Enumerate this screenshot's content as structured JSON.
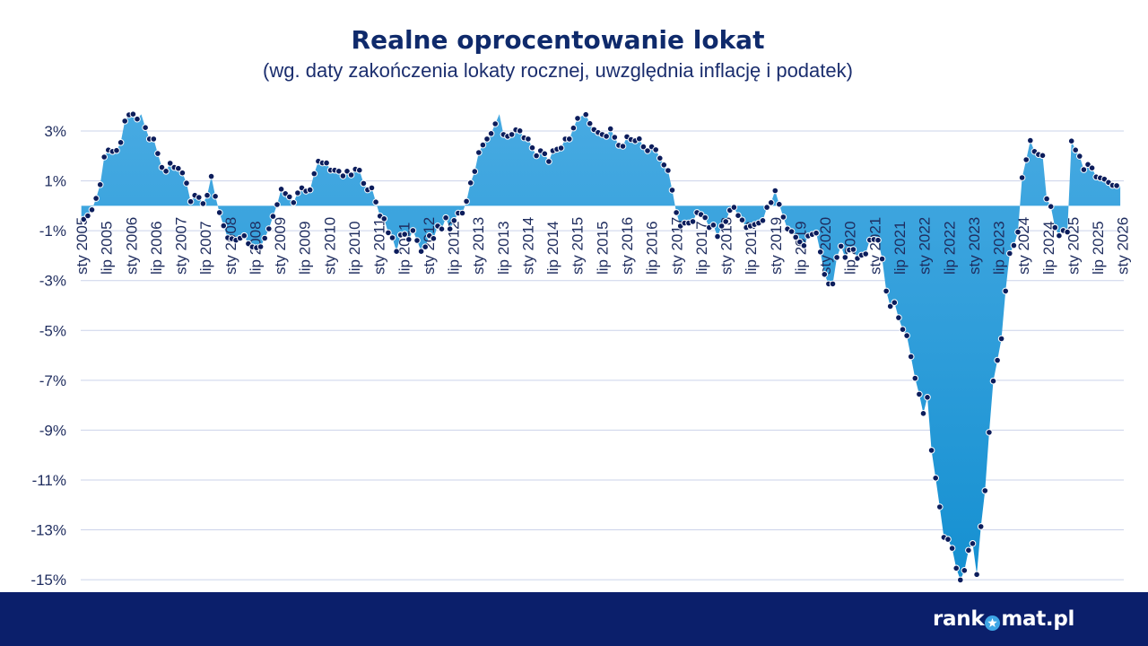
{
  "header": {
    "title": "Realne oprocentowanie lokat",
    "subtitle": "(wg. daty zakończenia lokaty rocznej, uwzględnia inflację i podatek)"
  },
  "footer": {
    "brand_name": "rankomat.pl",
    "logo_text_before": "rank",
    "logo_icon": "star-in-circle-icon",
    "logo_text_after": "mat.pl"
  },
  "colors": {
    "title": "#0f2a6b",
    "subtitle": "#1b2e6e",
    "axis_labels": "#1e2c5e",
    "gridline": "#cbd3ea",
    "area_top": "#47aae2",
    "area_bottom": "#1590d1",
    "marker": "#0c1d5c",
    "footer_bg": "#0b1f6b",
    "logo_accent": "#3ea6e6"
  },
  "chart_data": {
    "type": "area",
    "title": "Realne oprocentowanie lokat",
    "subtitle": "(wg. daty zakończenia lokaty rocznej, uwzględnia inflację i podatek)",
    "xlabel": "",
    "ylabel": "",
    "ylim": [
      -15,
      3
    ],
    "grid": true,
    "legend": false,
    "frequency": "monthly",
    "x_start": "sty 2005",
    "x_tick_every": 6,
    "x_tick_labels": [
      "sty 2005",
      "lip 2005",
      "sty 2006",
      "lip 2006",
      "sty 2007",
      "lip 2007",
      "sty 2008",
      "lip 2008",
      "sty 2009",
      "lip 2009",
      "sty 2010",
      "lip 2010",
      "sty 2011",
      "lip 2011",
      "sty 2012",
      "lip 2012",
      "sty 2013",
      "lip 2013",
      "sty 2014",
      "lip 2014",
      "sty 2015",
      "lip 2015",
      "sty 2016",
      "lip 2016",
      "sty 2017",
      "lip 2017",
      "sty 2018",
      "lip 2018",
      "sty 2019",
      "lip 2019",
      "sty 2020",
      "lip 2020",
      "sty 2021",
      "lip 2021",
      "sty 2022",
      "lip 2022",
      "sty 2023",
      "lip 2023",
      "sty 2024",
      "lip 2024",
      "sty 2025",
      "lip 2025",
      "sty 2026"
    ],
    "y_ticks": [
      {
        "value": 3,
        "label": "3%"
      },
      {
        "value": 1,
        "label": "1%"
      },
      {
        "value": -1,
        "label": "-1%"
      },
      {
        "value": -3,
        "label": "-3%"
      },
      {
        "value": -5,
        "label": "-5%"
      },
      {
        "value": -7,
        "label": "-7%"
      },
      {
        "value": -9,
        "label": "-9%"
      },
      {
        "value": -11,
        "label": "-11%"
      },
      {
        "value": -13,
        "label": "-13%"
      },
      {
        "value": -15,
        "label": "-15%"
      }
    ],
    "series": [
      {
        "name": "Realne oprocentowanie lokat",
        "unit": "%",
        "points_without_marker": [
          14,
          101,
          121
        ],
        "values": [
          -0.54,
          -0.4,
          -0.16,
          0.3,
          0.85,
          1.96,
          2.24,
          2.18,
          2.22,
          2.54,
          3.4,
          3.65,
          3.68,
          3.48,
          3.67,
          3.14,
          2.68,
          2.68,
          2.1,
          1.54,
          1.39,
          1.71,
          1.54,
          1.5,
          1.32,
          0.91,
          0.17,
          0.42,
          0.34,
          0.09,
          0.42,
          1.18,
          0.38,
          -0.27,
          -0.8,
          -1.28,
          -1.32,
          -1.38,
          -1.3,
          -1.2,
          -1.52,
          -1.65,
          -1.68,
          -1.64,
          -1.3,
          -0.92,
          -0.42,
          0.05,
          0.67,
          0.49,
          0.36,
          0.13,
          0.52,
          0.72,
          0.59,
          0.64,
          1.29,
          1.79,
          1.72,
          1.72,
          1.43,
          1.43,
          1.39,
          1.2,
          1.39,
          1.24,
          1.47,
          1.43,
          0.9,
          0.64,
          0.72,
          0.15,
          -0.41,
          -0.52,
          -1.08,
          -1.28,
          -1.83,
          -1.17,
          -1.14,
          -1.35,
          -0.99,
          -1.39,
          -1.83,
          -1.65,
          -1.2,
          -1.31,
          -0.81,
          -0.93,
          -0.48,
          -0.93,
          -0.59,
          -0.29,
          -0.29,
          0.18,
          0.92,
          1.38,
          2.14,
          2.44,
          2.68,
          2.9,
          3.29,
          3.68,
          2.86,
          2.79,
          2.86,
          3.05,
          3.01,
          2.73,
          2.68,
          2.33,
          2.01,
          2.21,
          2.09,
          1.78,
          2.21,
          2.27,
          2.32,
          2.68,
          2.68,
          3.12,
          3.51,
          3.6,
          3.66,
          3.3,
          3.06,
          2.94,
          2.86,
          2.79,
          3.09,
          2.75,
          2.43,
          2.39,
          2.77,
          2.66,
          2.61,
          2.69,
          2.37,
          2.21,
          2.37,
          2.25,
          1.91,
          1.64,
          1.42,
          0.63,
          -0.27,
          -0.81,
          -0.69,
          -0.69,
          -0.63,
          -0.27,
          -0.35,
          -0.47,
          -0.87,
          -0.77,
          -1.23,
          -0.81,
          -0.63,
          -0.18,
          -0.06,
          -0.39,
          -0.57,
          -0.87,
          -0.81,
          -0.75,
          -0.69,
          -0.59,
          -0.06,
          0.13,
          0.61,
          0.06,
          -0.45,
          -0.93,
          -1.03,
          -1.26,
          -1.45,
          -1.6,
          -1.21,
          -1.15,
          -1.09,
          -1.85,
          -2.75,
          -3.13,
          -3.13,
          -2.07,
          -1.62,
          -2.07,
          -1.77,
          -1.75,
          -2.11,
          -1.98,
          -1.93,
          -1.37,
          -1.35,
          -1.38,
          -2.13,
          -3.42,
          -4.03,
          -3.88,
          -4.49,
          -4.96,
          -5.21,
          -6.05,
          -6.92,
          -7.56,
          -8.33,
          -7.68,
          -9.81,
          -10.92,
          -12.08,
          -13.3,
          -13.38,
          -13.74,
          -14.54,
          -15.01,
          -14.63,
          -13.82,
          -13.55,
          -14.79,
          -12.87,
          -11.43,
          -9.09,
          -7.03,
          -6.2,
          -5.33,
          -3.42,
          -1.91,
          -1.59,
          -1.05,
          1.13,
          1.85,
          2.62,
          2.18,
          2.06,
          2.02,
          0.28,
          -0.03,
          -0.87,
          -1.2,
          -0.99,
          -1.05,
          2.6,
          2.24,
          1.99,
          1.45,
          1.66,
          1.52,
          1.16,
          1.12,
          1.07,
          0.94,
          0.82,
          0.81
        ]
      }
    ]
  }
}
